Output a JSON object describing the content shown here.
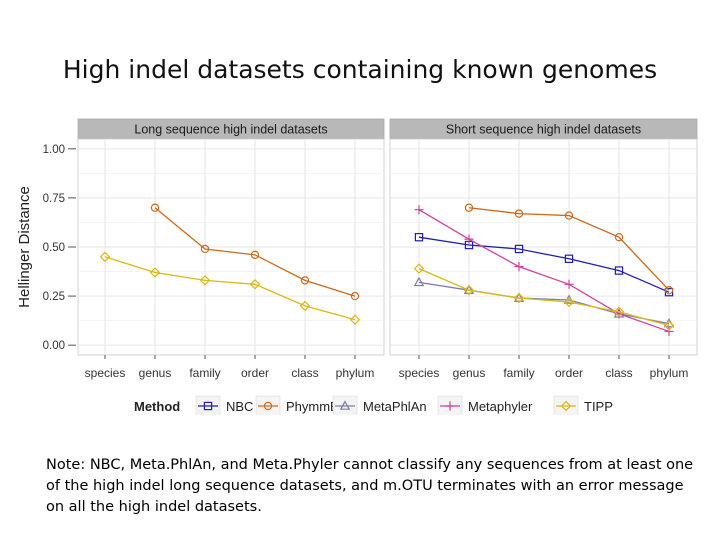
{
  "slide": {
    "title": "High indel datasets containing known genomes",
    "note_lines": [
      "Note: NBC, Meta.PhlAn, and Meta.Phyler cannot classify any sequences from at least one",
      " of the high indel long sequence datasets, and m.OTU terminates with an error message",
      "on all the high indel datasets."
    ]
  },
  "colors": {
    "NBC": "#1f1fb4",
    "PhymmBL": "#cc6a1c",
    "MetaPhlAn": "#7c7cae",
    "Metaphyler": "#d0429c",
    "TIPP": "#dcb814",
    "strip_bg": "#b8b8b8",
    "panel_bg": "#ffffff",
    "grid": "#e6e6e6"
  },
  "chart_data": {
    "type": "line",
    "ylabel": "Hellinger Distance",
    "xlabel": "",
    "ylim": [
      -0.05,
      1.05
    ],
    "yticks": [
      0.0,
      0.25,
      0.5,
      0.75,
      1.0
    ],
    "ytick_labels": [
      "0.00",
      "0.25",
      "0.50",
      "0.75",
      "1.00"
    ],
    "categories": [
      "species",
      "genus",
      "family",
      "order",
      "class",
      "phylum"
    ],
    "legend": {
      "title": "Method",
      "entries": [
        "NBC",
        "PhymmBL",
        "MetaPhlAn",
        "Metaphyler",
        "TIPP"
      ],
      "placement": "bottom"
    },
    "panels": [
      {
        "title": "Long sequence high indel datasets",
        "series": [
          {
            "name": "PhymmBL",
            "marker": "circle",
            "values": [
              null,
              0.7,
              0.49,
              0.46,
              0.33,
              0.25
            ]
          },
          {
            "name": "TIPP",
            "marker": "diamond",
            "values": [
              0.45,
              0.37,
              0.33,
              0.31,
              0.2,
              0.13
            ]
          }
        ]
      },
      {
        "title": "Short sequence high indel datasets",
        "series": [
          {
            "name": "NBC",
            "marker": "square",
            "values": [
              0.55,
              0.51,
              0.49,
              0.44,
              0.38,
              0.27
            ]
          },
          {
            "name": "PhymmBL",
            "marker": "circle",
            "values": [
              null,
              0.7,
              0.67,
              0.66,
              0.55,
              0.28
            ]
          },
          {
            "name": "MetaPhlAn",
            "marker": "triangle",
            "values": [
              0.32,
              0.28,
              0.24,
              0.23,
              0.16,
              0.11
            ]
          },
          {
            "name": "Metaphyler",
            "marker": "plus",
            "values": [
              0.69,
              0.54,
              0.4,
              0.31,
              0.16,
              0.07
            ]
          },
          {
            "name": "TIPP",
            "marker": "diamond",
            "values": [
              0.39,
              0.28,
              0.24,
              0.22,
              0.17,
              0.1
            ]
          }
        ]
      }
    ]
  }
}
